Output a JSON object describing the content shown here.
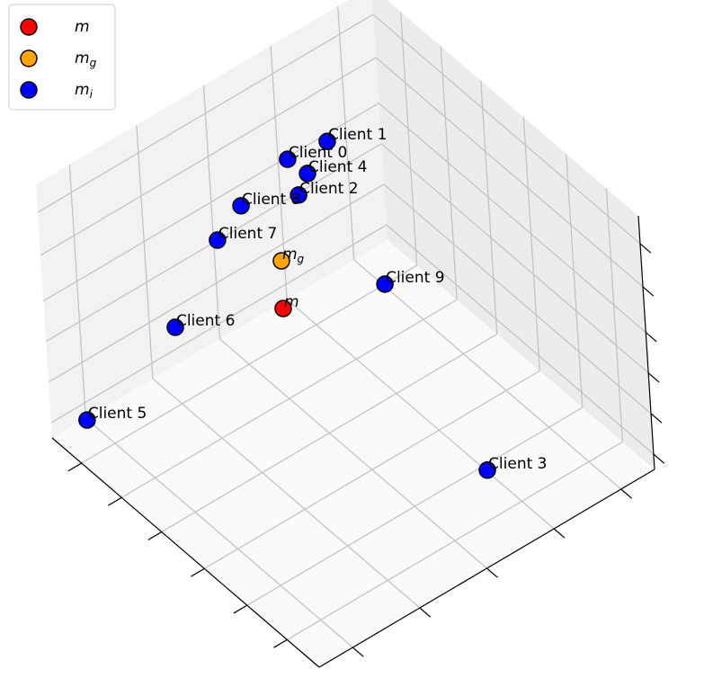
{
  "chart_data": {
    "type": "scatter3d",
    "xlim": [
      0,
      1
    ],
    "ylim": [
      0,
      1
    ],
    "zlim": [
      0,
      1
    ],
    "xticks": [
      0.12,
      0.27,
      0.43,
      0.59,
      0.74,
      0.89
    ],
    "yticks": [
      0.1,
      0.3,
      0.5,
      0.7,
      0.9
    ],
    "zticks": [
      0.06,
      0.22,
      0.38,
      0.54,
      0.72,
      0.89
    ],
    "grid": true,
    "legend": "upper left",
    "series": [
      {
        "name": "m",
        "color": "red",
        "x": [
          0.642
        ],
        "y": [
          0.428
        ],
        "z": [
          0.5
        ],
        "labels": [
          "m"
        ]
      },
      {
        "name": "mg",
        "color": "orange",
        "x": [
          0.768
        ],
        "y": [
          0.523
        ],
        "z": [
          0.5
        ],
        "labels": [
          "mg"
        ]
      },
      {
        "name": "mi",
        "color": "blue",
        "x": [
          0.817,
          0.803,
          0.708,
          0.049,
          0.75,
          0.857,
          0.826,
          0.783,
          0.768,
          0.55
        ],
        "y": [
          0.595,
          0.702,
          0.541,
          0.555,
          0.601,
          0.0,
          0.248,
          0.354,
          0.417,
          0.658
        ],
        "z": [
          0.8,
          0.8,
          0.8,
          0.3,
          0.8,
          0.2,
          0.4,
          0.7,
          0.8,
          0.5
        ],
        "labels": [
          "Client 0",
          "Client 1",
          "Client 2",
          "Client 3",
          "Client 4",
          "Client 5",
          "Client 6",
          "Client 7",
          "Client 8",
          "Client 9"
        ]
      }
    ]
  }
}
